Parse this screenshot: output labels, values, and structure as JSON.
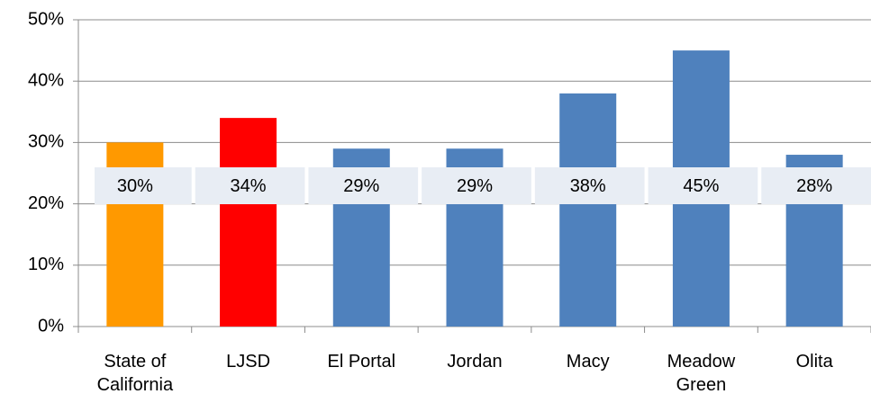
{
  "chart_data": {
    "type": "bar",
    "categories": [
      "State of California",
      "LJSD",
      "El Portal",
      "Jordan",
      "Macy",
      "Meadow Green",
      "Olita"
    ],
    "values": [
      30,
      34,
      29,
      29,
      38,
      45,
      28
    ],
    "value_labels": [
      "30%",
      "34%",
      "29%",
      "29%",
      "38%",
      "45%",
      "28%"
    ],
    "colors": [
      "#ff9900",
      "#ff0000",
      "#4f81bd",
      "#4f81bd",
      "#4f81bd",
      "#4f81bd",
      "#4f81bd"
    ],
    "ylim": [
      0,
      50
    ],
    "yticks": [
      {
        "value": 0,
        "label": "0%"
      },
      {
        "value": 10,
        "label": "10%"
      },
      {
        "value": 20,
        "label": "20%"
      },
      {
        "value": 30,
        "label": "30%"
      },
      {
        "value": 40,
        "label": "40%"
      },
      {
        "value": 50,
        "label": "50%"
      }
    ],
    "grid": true
  }
}
